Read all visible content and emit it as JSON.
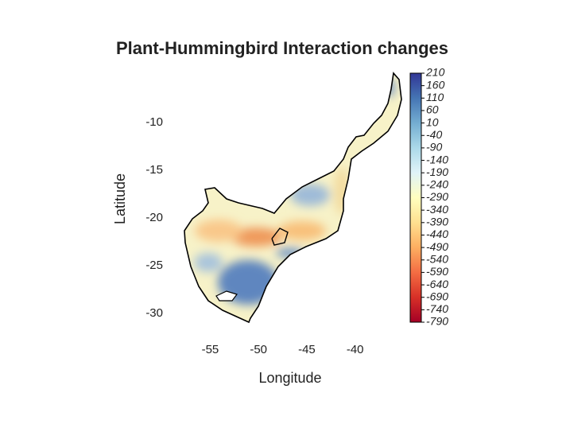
{
  "chart_data": {
    "type": "map",
    "title": "Plant-Hummingbird Interaction changes",
    "x_label": "Longitude",
    "y_label": "Latitude",
    "xlim": [
      -58,
      -35
    ],
    "ylim": [
      -33,
      -5
    ],
    "xticks": [
      -55,
      -50,
      -45,
      -40
    ],
    "yticks": [
      -10,
      -15,
      -20,
      -25,
      -30
    ],
    "colorbar": {
      "lim": [
        -790,
        210
      ],
      "ticks": [
        210,
        160,
        110,
        60,
        10,
        -40,
        -90,
        -140,
        -190,
        -240,
        -290,
        -340,
        -390,
        -440,
        -490,
        -540,
        -590,
        -640,
        -690,
        -740,
        -790
      ],
      "colors": [
        "#a50026",
        "#d73027",
        "#f46d43",
        "#fdae61",
        "#fee090",
        "#ffffbf",
        "#e0f3f8",
        "#abd9e9",
        "#74add1",
        "#4575b4",
        "#313695"
      ]
    }
  }
}
